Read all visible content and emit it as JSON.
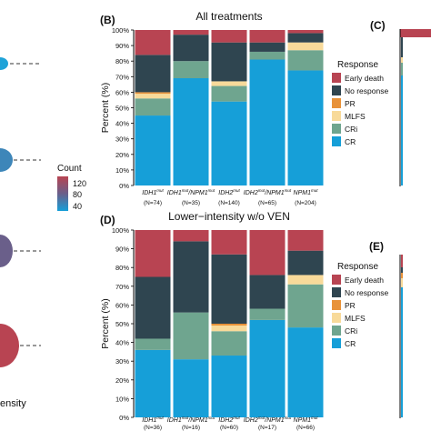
{
  "colors": {
    "early_death": "#b84452",
    "no_response": "#2f4550",
    "pr": "#e8923a",
    "mlfs": "#f8da9a",
    "cri": "#6fa58f",
    "cr": "#169fd8",
    "frame": "#000000",
    "count_high": "#b84452",
    "count_mid": "#6a5f8a",
    "count_low": "#169fd8"
  },
  "panel_b_label": "(B)",
  "panel_c_label": "(C)",
  "panel_d_label": "(D)",
  "panel_e_label": "(E)",
  "left_colorbar": {
    "title": "Count",
    "ticks": [
      "120",
      "80",
      "40"
    ]
  },
  "left_fragment_text": "ensity",
  "chart_data": [
    {
      "panel": "(B)",
      "type": "bar",
      "stacked": true,
      "title": "All treatments",
      "ylabel": "Percent (%)",
      "ylim": [
        0,
        100
      ],
      "yticks": [
        "0%",
        "10%",
        "20%",
        "30%",
        "40%",
        "50%",
        "60%",
        "70%",
        "80%",
        "90%",
        "100%"
      ],
      "categories": [
        {
          "gene": "IDH1",
          "sup": "mut",
          "gene2": "",
          "sup2": "",
          "n": "(N=74)"
        },
        {
          "gene": "IDH1",
          "sup": "mut",
          "gene2": "/NPM1",
          "sup2": "mut",
          "n": "(N=35)"
        },
        {
          "gene": "IDH2",
          "sup": "mut",
          "gene2": "",
          "sup2": "",
          "n": "(N=140)"
        },
        {
          "gene": "IDH2",
          "sup": "mut",
          "gene2": "/NPM1",
          "sup2": "mut",
          "n": "(N=65)"
        },
        {
          "gene": "NPM1",
          "sup": "mut",
          "gene2": "",
          "sup2": "",
          "n": "(N=204)"
        }
      ],
      "legend_title": "Response",
      "legend_position": "right",
      "series": [
        {
          "name": "CR",
          "color_key": "cr",
          "values": [
            45,
            69,
            54,
            81,
            74
          ]
        },
        {
          "name": "CRi",
          "color_key": "cri",
          "values": [
            11,
            11,
            10,
            5,
            13
          ]
        },
        {
          "name": "MLFS",
          "color_key": "mlfs",
          "values": [
            3,
            0,
            3,
            0,
            5
          ]
        },
        {
          "name": "PR",
          "color_key": "pr",
          "values": [
            1,
            0,
            0,
            0,
            0
          ]
        },
        {
          "name": "No response",
          "color_key": "no_response",
          "values": [
            24,
            17,
            25,
            6,
            6
          ]
        },
        {
          "name": "Early death",
          "color_key": "early_death",
          "values": [
            16,
            3,
            8,
            8,
            2
          ]
        }
      ]
    },
    {
      "panel": "(D)",
      "type": "bar",
      "stacked": true,
      "title": "Lower−intensity w/o VEN",
      "ylabel": "Percent (%)",
      "ylim": [
        0,
        100
      ],
      "yticks": [
        "0%",
        "10%",
        "20%",
        "30%",
        "40%",
        "50%",
        "60%",
        "70%",
        "80%",
        "90%",
        "100%"
      ],
      "categories": [
        {
          "gene": "IDH1",
          "sup": "mut",
          "gene2": "",
          "sup2": "",
          "n": "(N=36)"
        },
        {
          "gene": "IDH1",
          "sup": "mut",
          "gene2": "/NPM1",
          "sup2": "mut",
          "n": "(N=16)"
        },
        {
          "gene": "IDH2",
          "sup": "mut",
          "gene2": "",
          "sup2": "",
          "n": "(N=60)"
        },
        {
          "gene": "IDH2",
          "sup": "mut",
          "gene2": "/NPM1",
          "sup2": "mut",
          "n": "(N=17)"
        },
        {
          "gene": "NPM1",
          "sup": "mut",
          "gene2": "",
          "sup2": "",
          "n": "(N=66)"
        }
      ],
      "legend_title": "Response",
      "legend_position": "right",
      "series": [
        {
          "name": "CR",
          "color_key": "cr",
          "values": [
            36,
            31,
            33,
            52,
            48
          ]
        },
        {
          "name": "CRi",
          "color_key": "cri",
          "values": [
            6,
            25,
            13,
            6,
            23
          ]
        },
        {
          "name": "MLFS",
          "color_key": "mlfs",
          "values": [
            0,
            0,
            3,
            0,
            5
          ]
        },
        {
          "name": "PR",
          "color_key": "pr",
          "values": [
            0,
            0,
            1,
            0,
            0
          ]
        },
        {
          "name": "No response",
          "color_key": "no_response",
          "values": [
            33,
            38,
            37,
            18,
            13
          ]
        },
        {
          "name": "Early death",
          "color_key": "early_death",
          "values": [
            25,
            6,
            13,
            24,
            11
          ]
        }
      ]
    }
  ],
  "legend_items": [
    {
      "label": "Early death",
      "color_key": "early_death"
    },
    {
      "label": "No response",
      "color_key": "no_response"
    },
    {
      "label": "PR",
      "color_key": "pr"
    },
    {
      "label": "MLFS",
      "color_key": "mlfs"
    },
    {
      "label": "CRi",
      "color_key": "cri"
    },
    {
      "label": "CR",
      "color_key": "cr"
    }
  ]
}
